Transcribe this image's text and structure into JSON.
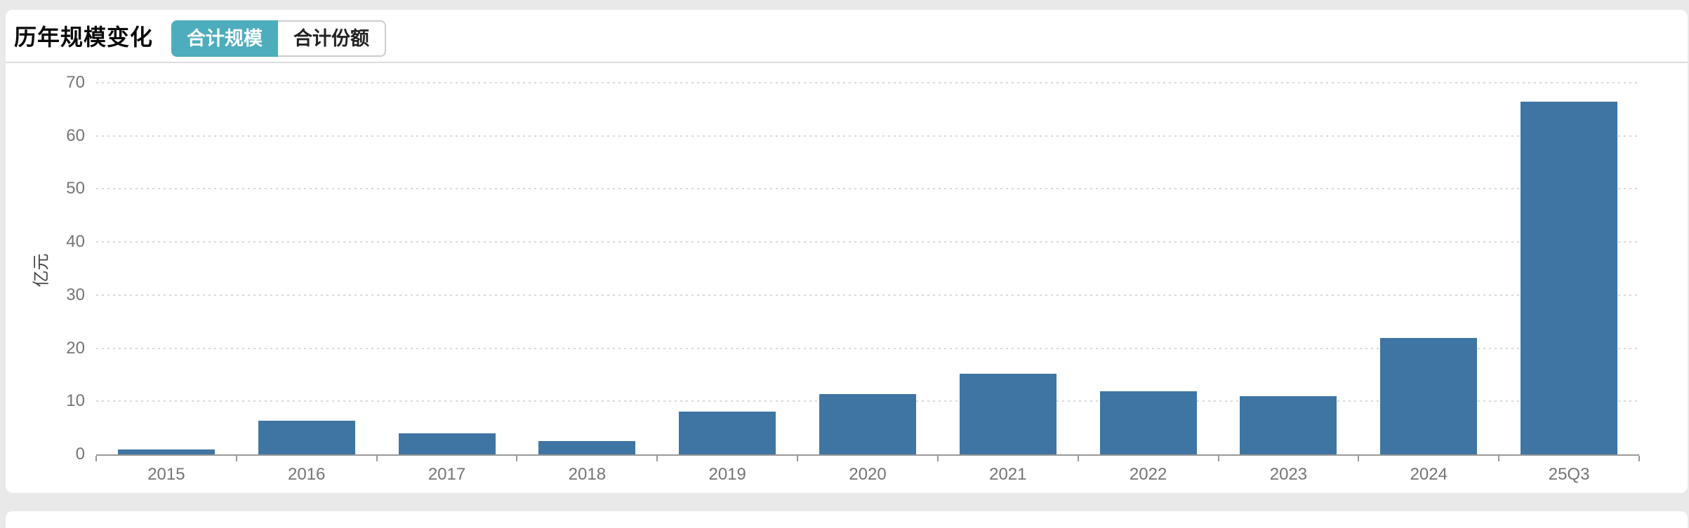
{
  "header": {
    "title": "历年规模变化",
    "tabs": [
      {
        "label": "合计规模",
        "active": true
      },
      {
        "label": "合计份额",
        "active": false
      }
    ]
  },
  "chart_data": {
    "type": "bar",
    "title": "",
    "categories": [
      "2015",
      "2016",
      "2017",
      "2018",
      "2019",
      "2020",
      "2021",
      "2022",
      "2023",
      "2024",
      "25Q3"
    ],
    "values": [
      0.9,
      6.3,
      3.9,
      2.5,
      8.1,
      11.3,
      15.2,
      11.9,
      11.0,
      21.9,
      66.5
    ],
    "xlabel": "",
    "ylabel": "亿元",
    "ylim": [
      0,
      70
    ],
    "ytick_interval": 10,
    "grid": "horizontal-dotted",
    "legend": "none",
    "bar_color": "#3f75a3"
  },
  "colors": {
    "page_background": "#e9e9e9",
    "card_background": "#ffffff",
    "active_tab_background": "#4dadbd",
    "active_tab_text": "#ffffff",
    "bar": "#3f75a3",
    "axis_line": "#999999",
    "tick_label": "#757575"
  }
}
